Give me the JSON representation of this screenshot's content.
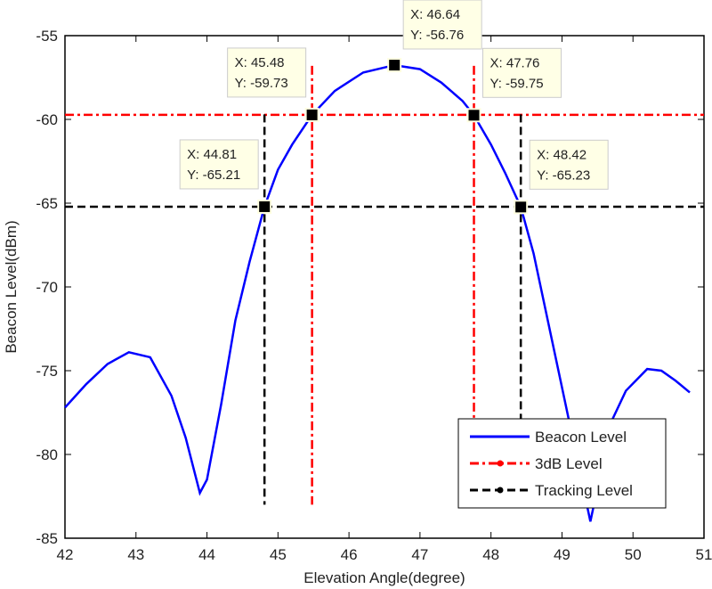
{
  "chart_data": {
    "type": "line",
    "title": "",
    "xlabel": "Elevation Angle(degree)",
    "ylabel": "Beacon Level(dBm)",
    "xlim": [
      42,
      51
    ],
    "ylim": [
      -85,
      -55
    ],
    "xticks": [
      "42",
      "43",
      "44",
      "45",
      "46",
      "47",
      "48",
      "49",
      "50",
      "51"
    ],
    "yticks": [
      "-55",
      "-60",
      "-65",
      "-70",
      "-75",
      "-80",
      "-85"
    ],
    "grid": false,
    "legend_placement": "bottom-right",
    "series": [
      {
        "name": "Beacon Level",
        "color": "#0000ff",
        "style": "solid",
        "x": [
          42,
          42.3,
          42.6,
          42.9,
          43.2,
          43.5,
          43.7,
          43.9,
          44.0,
          44.2,
          44.4,
          44.6,
          44.81,
          45.0,
          45.2,
          45.48,
          45.8,
          46.2,
          46.64,
          47.0,
          47.3,
          47.6,
          47.76,
          48.0,
          48.2,
          48.42,
          48.6,
          48.8,
          49.0,
          49.1,
          49.4,
          49.7,
          49.9,
          50.2,
          50.4,
          50.6,
          50.8
        ],
        "y": [
          -77.2,
          -75.8,
          -74.6,
          -73.9,
          -74.2,
          -76.5,
          -79,
          -82.3,
          -81.5,
          -77,
          -72,
          -68.5,
          -65.21,
          -63,
          -61.5,
          -59.73,
          -58.3,
          -57.2,
          -56.76,
          -57,
          -57.8,
          -58.9,
          -59.75,
          -61.5,
          -63.2,
          -65.23,
          -68,
          -72,
          -76,
          -78,
          -84,
          -78,
          -76.2,
          -74.9,
          -75,
          -75.6,
          -76.3
        ]
      },
      {
        "name": "3dB Level",
        "color": "#ff0000",
        "style": "dash-dot",
        "level": -59.73,
        "x_marks": [
          45.48,
          47.76
        ]
      },
      {
        "name": "Tracking Level",
        "color": "#000000",
        "style": "dashed",
        "level": -65.21,
        "x_marks": [
          44.81,
          48.42
        ]
      }
    ],
    "annotations": [
      {
        "x": 44.81,
        "y": -65.21,
        "text": [
          "X: 44.81",
          "Y: -65.21"
        ]
      },
      {
        "x": 45.48,
        "y": -59.73,
        "text": [
          "X: 45.48",
          "Y: -59.73"
        ]
      },
      {
        "x": 46.64,
        "y": -56.76,
        "text": [
          "X: 46.64",
          "Y: -56.76"
        ]
      },
      {
        "x": 47.76,
        "y": -59.75,
        "text": [
          "X: 47.76",
          "Y: -59.75"
        ]
      },
      {
        "x": 48.42,
        "y": -65.23,
        "text": [
          "X: 48.42",
          "Y: -65.23"
        ]
      }
    ]
  }
}
